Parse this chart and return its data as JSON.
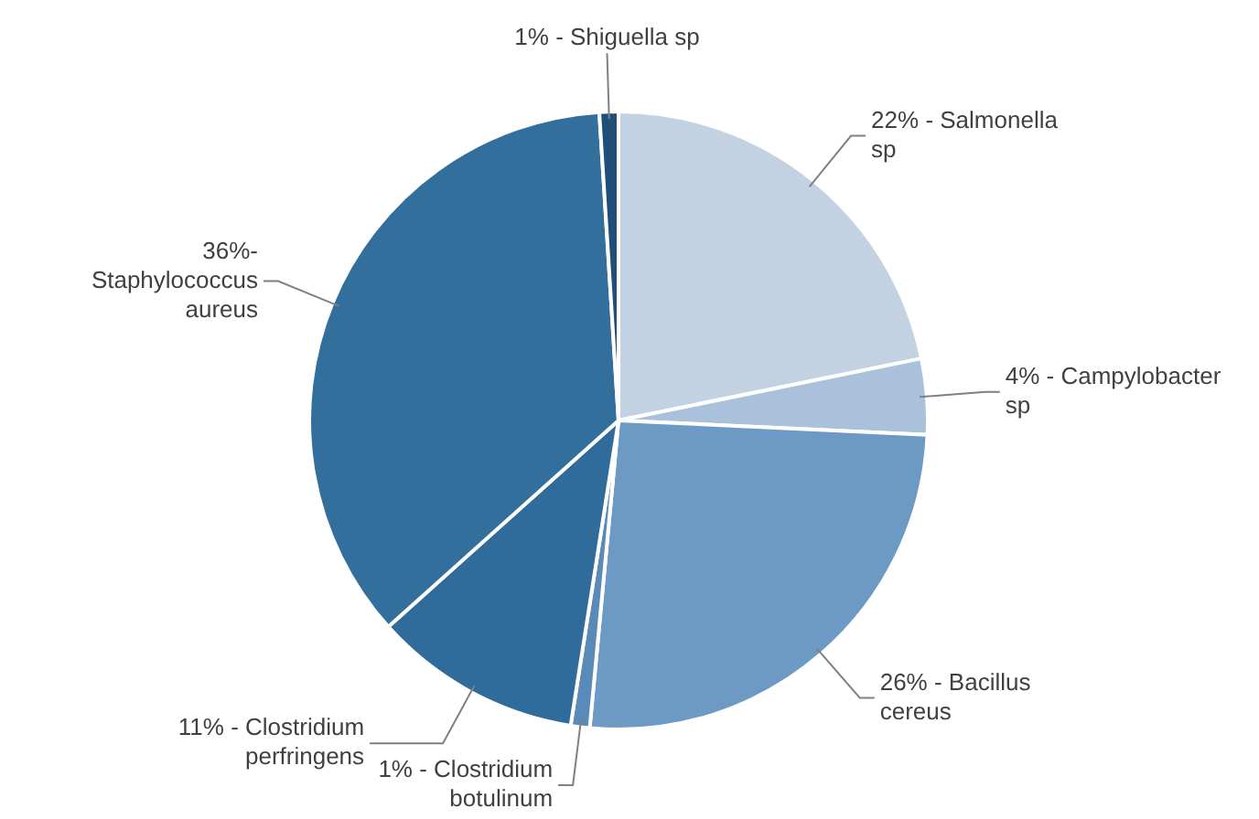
{
  "chart_data": {
    "type": "pie",
    "categories": [
      "Salmonella sp",
      "Campylobacter sp",
      "Bacillus cereus",
      "Clostridium botulinum",
      "Clostridium perfringens",
      "Staphylococcus aureus",
      "Shiguella sp"
    ],
    "values": [
      22,
      4,
      26,
      1,
      11,
      36,
      1
    ],
    "colors": [
      "#c3d2e3",
      "#a9c1da",
      "#6d9ac4",
      "#5a8bb8",
      "#2f6b9b",
      "#336f9c",
      "#1f4e79"
    ],
    "value_labels": [
      "22% -",
      "4% -",
      "26% -",
      "1% -",
      "11% -",
      "36%-",
      "1% -"
    ],
    "legend": false
  }
}
